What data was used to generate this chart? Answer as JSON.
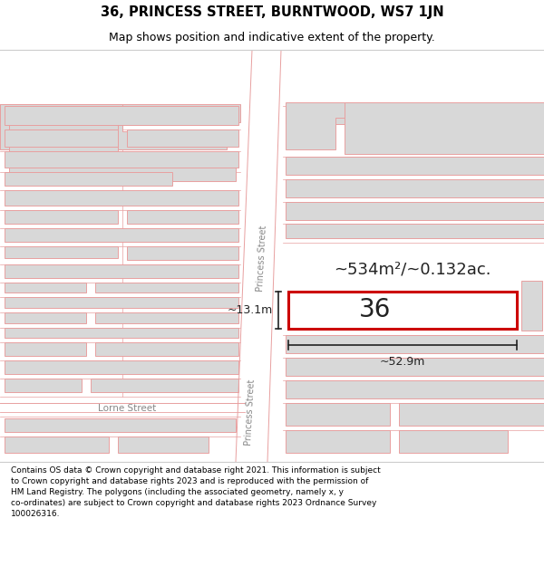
{
  "title": "36, PRINCESS STREET, BURNTWOOD, WS7 1JN",
  "subtitle": "Map shows position and indicative extent of the property.",
  "footer": "Contains OS data © Crown copyright and database right 2021. This information is subject\nto Crown copyright and database rights 2023 and is reproduced with the permission of\nHM Land Registry. The polygons (including the associated geometry, namely x, y\nco-ordinates) are subject to Crown copyright and database rights 2023 Ordnance Survey\n100026316.",
  "bg_color": "#ffffff",
  "map_bg": "#ffffff",
  "building_fill": "#d8d8d8",
  "building_edge": "#e8a0a0",
  "road_line": "#e8a0a0",
  "highlight_fill": "#ffffff",
  "highlight_edge": "#cc0000",
  "street_color": "#888888",
  "text_color": "#222222",
  "street_label_princess": "Princess Street",
  "street_label_lorne": "Lorne Street",
  "area_text": "~534m²/~0.132ac.",
  "dim_width": "~52.9m",
  "dim_height": "~13.1m",
  "plot_number": "36",
  "title_fontsize": 10.5,
  "subtitle_fontsize": 9,
  "footer_fontsize": 6.5
}
